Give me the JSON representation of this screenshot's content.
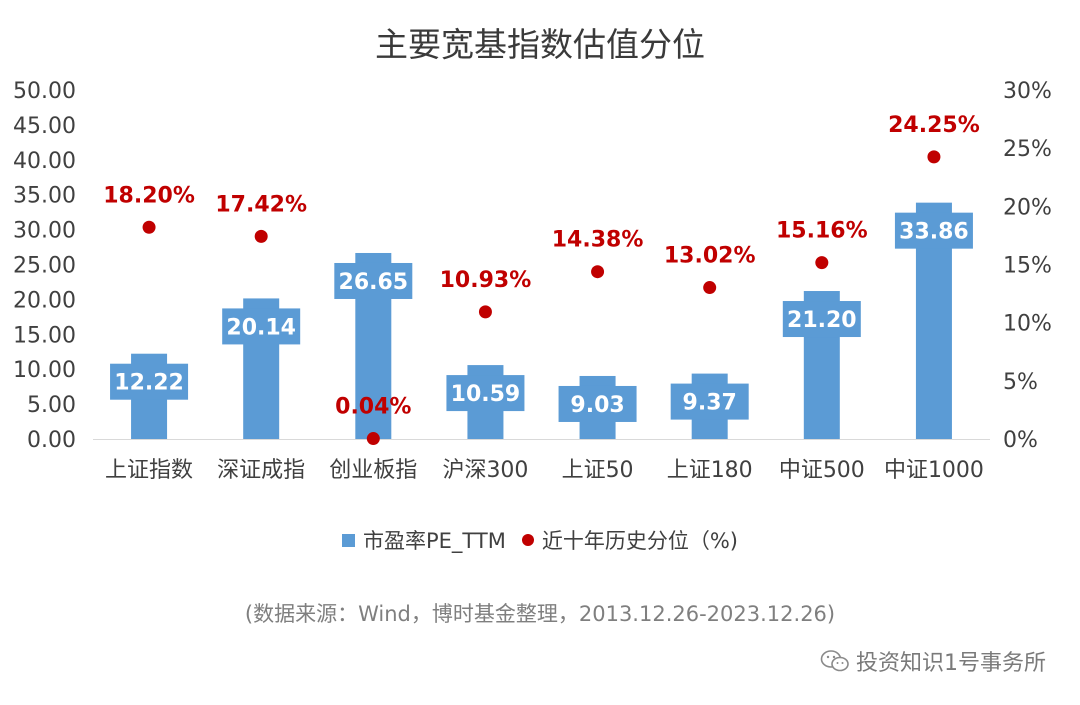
{
  "title": "主要宽基指数估值分位",
  "legend": {
    "pe_label": "市盈率PE_TTM",
    "pct_label": "近十年历史分位（%)"
  },
  "source": "(数据来源：Wind，博时基金整理，2013.12.26-2023.12.26)",
  "watermark": "投资知识1号事务所",
  "colors": {
    "bar": "#5b9bd5",
    "dot": "#c00000",
    "axis_text": "#404040",
    "bar_label": "#ffffff"
  },
  "chart_data": {
    "type": "bar",
    "categories": [
      "上证指数",
      "深证成指",
      "创业板指",
      "沪深300",
      "上证50",
      "上证180",
      "中证500",
      "中证1000"
    ],
    "series": [
      {
        "name": "市盈率PE_TTM",
        "type": "bar",
        "axis": "left",
        "values": [
          12.22,
          20.14,
          26.65,
          10.59,
          9.03,
          9.37,
          21.2,
          33.86
        ],
        "labels": [
          "12.22",
          "20.14",
          "26.65",
          "10.59",
          "9.03",
          "9.37",
          "21.20",
          "33.86"
        ]
      },
      {
        "name": "近十年历史分位（%)",
        "type": "scatter",
        "axis": "right",
        "values": [
          18.2,
          17.42,
          0.04,
          10.93,
          14.38,
          13.02,
          15.16,
          24.25
        ],
        "labels": [
          "18.20%",
          "17.42%",
          "0.04%",
          "10.93%",
          "14.38%",
          "13.02%",
          "15.16%",
          "24.25%"
        ]
      }
    ],
    "y_left": {
      "range": [
        0,
        50
      ],
      "ticks": [
        "0.00",
        "5.00",
        "10.00",
        "15.00",
        "20.00",
        "25.00",
        "30.00",
        "35.00",
        "40.00",
        "45.00",
        "50.00"
      ]
    },
    "y_right": {
      "range": [
        0,
        30
      ],
      "ticks": [
        "0%",
        "5%",
        "10%",
        "15%",
        "20%",
        "25%",
        "30%"
      ]
    },
    "grid": false,
    "legend_position": "bottom"
  }
}
